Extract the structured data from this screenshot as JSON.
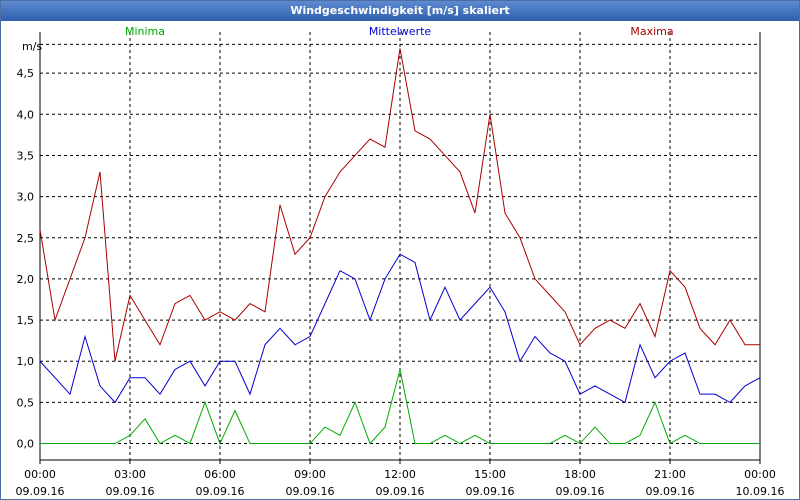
{
  "title": "Windgeschwindigkeit [m/s] skaliert",
  "colors": {
    "min": "#00aa00",
    "avg": "#0000cc",
    "max": "#aa0000",
    "grid": "#000000",
    "titlebar": "#3a68b8"
  },
  "chart_data": {
    "type": "line",
    "title": "Windgeschwindigkeit [m/s] skaliert",
    "ylabel": "m/s",
    "xlabel": "",
    "ylim": [
      -0.2,
      5.0
    ],
    "xlim_hours": [
      0,
      24
    ],
    "grid": true,
    "legend_placement": "top",
    "yticks": [
      "0,0",
      "0,5",
      "1,0",
      "1,5",
      "2,0",
      "2,5",
      "3,0",
      "3,5",
      "4,0",
      "4,5"
    ],
    "ytick_values": [
      0,
      0.5,
      1.0,
      1.5,
      2.0,
      2.5,
      3.0,
      3.5,
      4.0,
      4.5
    ],
    "xticks": [
      {
        "time": "00:00",
        "date": "09.09.16"
      },
      {
        "time": "03:00",
        "date": "09.09.16"
      },
      {
        "time": "06:00",
        "date": "09.09.16"
      },
      {
        "time": "09:00",
        "date": "09.09.16"
      },
      {
        "time": "12:00",
        "date": "09.09.16"
      },
      {
        "time": "15:00",
        "date": "09.09.16"
      },
      {
        "time": "18:00",
        "date": "09.09.16"
      },
      {
        "time": "21:00",
        "date": "09.09.16"
      },
      {
        "time": "00:00",
        "date": "10.09.16"
      }
    ],
    "x_hours": [
      0,
      0.5,
      1,
      1.5,
      2,
      2.5,
      3,
      3.5,
      4,
      4.5,
      5,
      5.5,
      6,
      6.5,
      7,
      7.5,
      8,
      8.5,
      9,
      9.5,
      10,
      10.5,
      11,
      11.5,
      12,
      12.5,
      13,
      13.5,
      14,
      14.5,
      15,
      15.5,
      16,
      16.5,
      17,
      17.5,
      18,
      18.5,
      19,
      19.5,
      20,
      20.5,
      21,
      21.5,
      22,
      22.5,
      23,
      23.5,
      24
    ],
    "series": [
      {
        "name": "Minima",
        "color": "#00aa00",
        "values": [
          0,
          0,
          0,
          0,
          0,
          0,
          0.1,
          0.3,
          0,
          0.1,
          0,
          0.5,
          0,
          0.4,
          0,
          0,
          0,
          0,
          0,
          0.2,
          0.1,
          0.5,
          0,
          0.2,
          0.9,
          0,
          0,
          0.1,
          0,
          0.1,
          0,
          0,
          0,
          0,
          0,
          0.1,
          0,
          0.2,
          0,
          0,
          0.1,
          0.5,
          0,
          0.1,
          0,
          0,
          0,
          0,
          0
        ]
      },
      {
        "name": "Mittelwerte",
        "color": "#0000cc",
        "values": [
          1.0,
          0.8,
          0.6,
          1.3,
          0.7,
          0.5,
          0.8,
          0.8,
          0.6,
          0.9,
          1.0,
          0.7,
          1.0,
          1.0,
          0.6,
          1.2,
          1.4,
          1.2,
          1.3,
          1.7,
          2.1,
          2.0,
          1.5,
          2.0,
          2.3,
          2.2,
          1.5,
          1.9,
          1.5,
          1.7,
          1.9,
          1.6,
          1.0,
          1.3,
          1.1,
          1.0,
          0.6,
          0.7,
          0.6,
          0.5,
          1.2,
          0.8,
          1.0,
          1.1,
          0.6,
          0.6,
          0.5,
          0.7,
          0.8
        ]
      },
      {
        "name": "Maxima",
        "color": "#aa0000",
        "values": [
          2.6,
          1.5,
          2.0,
          2.5,
          3.3,
          1.0,
          1.8,
          1.5,
          1.2,
          1.7,
          1.8,
          1.5,
          1.6,
          1.5,
          1.7,
          1.6,
          2.9,
          2.3,
          2.5,
          3.0,
          3.3,
          3.5,
          3.7,
          3.6,
          4.8,
          3.8,
          3.7,
          3.5,
          3.3,
          2.8,
          4.0,
          2.8,
          2.5,
          2.0,
          1.8,
          1.6,
          1.2,
          1.4,
          1.5,
          1.4,
          1.7,
          1.3,
          2.1,
          1.9,
          1.4,
          1.2,
          1.5,
          1.2,
          1.2
        ]
      }
    ]
  }
}
